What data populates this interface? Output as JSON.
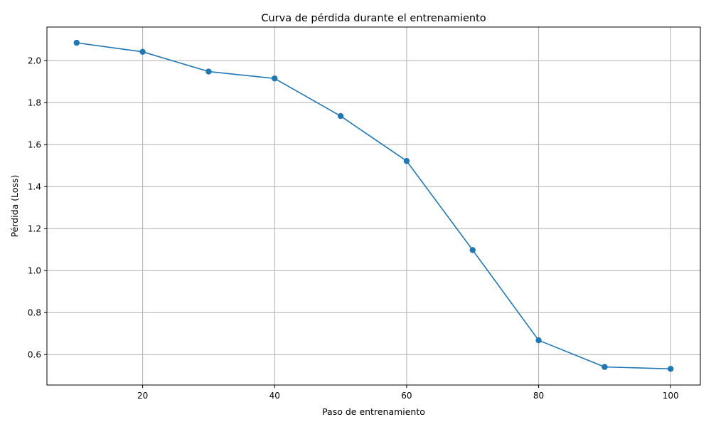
{
  "chart_data": {
    "type": "line",
    "title": "Curva de pérdida durante el entrenamiento",
    "xlabel": "Paso de entrenamiento",
    "ylabel": "Pérdida (Loss)",
    "xlim": [
      5.5,
      104.5
    ],
    "ylim": [
      0.455,
      2.16
    ],
    "xticks": [
      20,
      40,
      60,
      80,
      100
    ],
    "yticks": [
      0.6,
      0.8,
      1.0,
      1.2,
      1.4,
      1.6,
      1.8,
      2.0
    ],
    "xtick_labels": [
      "20",
      "40",
      "60",
      "80",
      "100"
    ],
    "ytick_labels": [
      "0.6",
      "0.8",
      "1.0",
      "1.2",
      "1.4",
      "1.6",
      "1.8",
      "2.0"
    ],
    "grid": true,
    "series": [
      {
        "color": "#1f77b4",
        "marker": "circle",
        "x": [
          10,
          20,
          30,
          40,
          50,
          60,
          70,
          80,
          90,
          100
        ],
        "y": [
          2.085,
          2.042,
          1.948,
          1.915,
          1.736,
          1.522,
          1.098,
          0.668,
          0.541,
          0.532
        ]
      }
    ]
  }
}
